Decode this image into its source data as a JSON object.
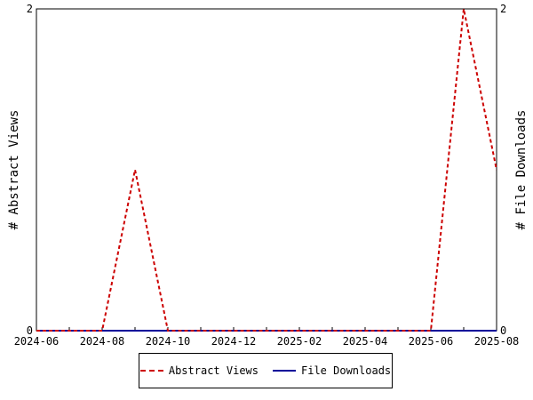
{
  "chart_data": {
    "type": "line",
    "x": [
      "2024-06",
      "2024-07",
      "2024-08",
      "2024-09",
      "2024-10",
      "2024-11",
      "2024-12",
      "2025-01",
      "2025-02",
      "2025-03",
      "2025-04",
      "2025-05",
      "2025-06",
      "2025-07",
      "2025-08"
    ],
    "x_tick_labels": [
      "2024-06",
      "2024-08",
      "2024-10",
      "2024-12",
      "2025-02",
      "2025-04",
      "2025-06",
      "2025-08"
    ],
    "series": [
      {
        "name": "Abstract Views",
        "axis": "left",
        "color": "#cc0000",
        "dash": "dashed",
        "values": [
          0,
          0,
          0,
          1,
          0,
          0,
          0,
          0,
          0,
          0,
          0,
          0,
          0,
          2,
          1
        ]
      },
      {
        "name": "File Downloads",
        "axis": "right",
        "color": "#000099",
        "dash": "solid",
        "values": [
          0,
          0,
          0,
          0,
          0,
          0,
          0,
          0,
          0,
          0,
          0,
          0,
          0,
          0,
          0
        ]
      }
    ],
    "ylabel_left": "# Abstract Views",
    "ylabel_right": "# File Downloads",
    "ylim_left": [
      0,
      2
    ],
    "ylim_right": [
      0,
      2
    ],
    "y_tick_labels_left": [
      "0",
      "2"
    ],
    "y_tick_labels_right": [
      "0",
      "2"
    ],
    "grid": false,
    "legend_position": "bottom"
  }
}
